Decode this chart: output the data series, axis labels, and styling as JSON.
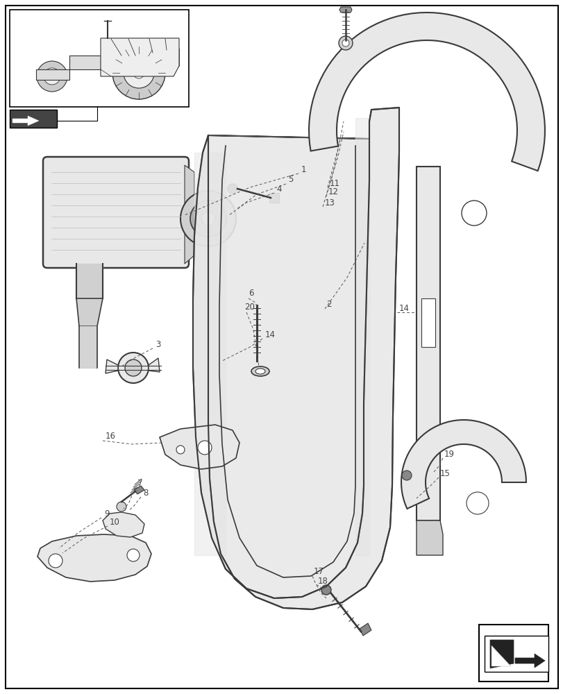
{
  "fig_width": 8.12,
  "fig_height": 10.0,
  "dpi": 100,
  "bg_color": "#ffffff",
  "lc": "#3a3a3a",
  "fc_light": "#e8e8e8",
  "fc_mid": "#d0d0d0",
  "fc_dark": "#b0b0b0",
  "label_color": "#555555",
  "label_fs": 8.5
}
